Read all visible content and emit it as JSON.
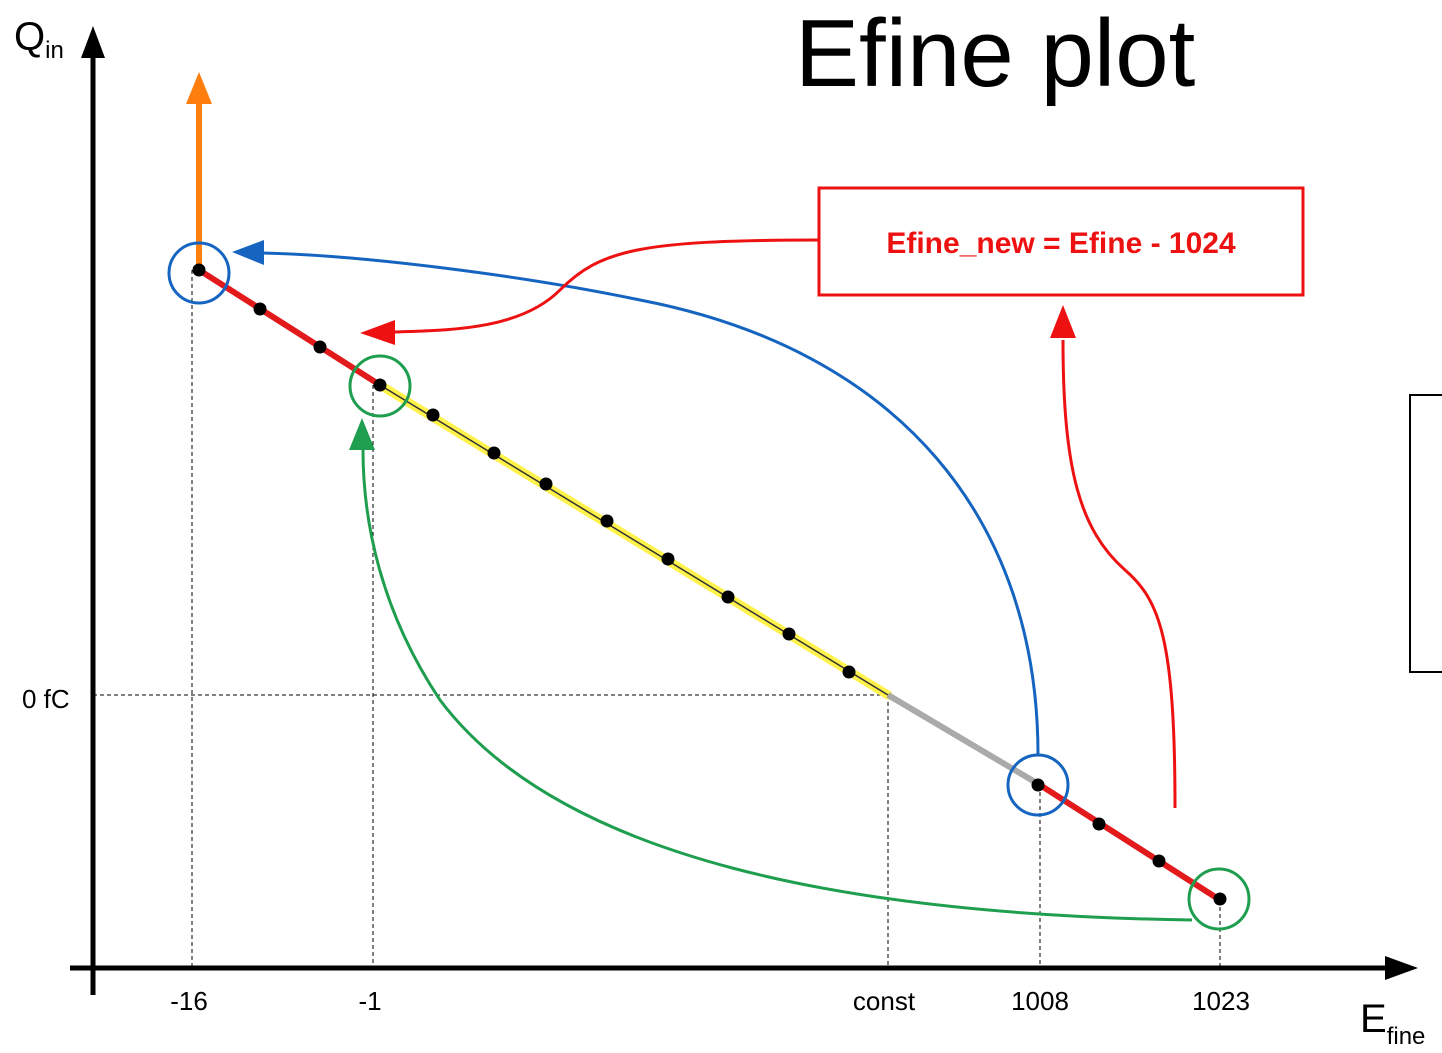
{
  "title": "Efine plot",
  "axes": {
    "y_label": {
      "main": "Q",
      "sub": "in"
    },
    "x_label": {
      "main": "E",
      "sub": "fine"
    },
    "y_tick_label": "0 fC",
    "x_tick_labels": [
      "-16",
      "-1",
      "const",
      "1008",
      "1023"
    ]
  },
  "annotation": {
    "formula": "Efine_new = Efine - 1024"
  },
  "colors": {
    "line_main": "#e31a1c",
    "line_yellow": "#fff24a",
    "line_gray": "#aaaaaa",
    "blue": "#1565c0",
    "green": "#1e9e4e",
    "orange": "#ff7f0e",
    "red": "#ee1111",
    "points": "#000000"
  },
  "icons": [
    "arrow-up-icon",
    "arrow-left-icon"
  ]
}
